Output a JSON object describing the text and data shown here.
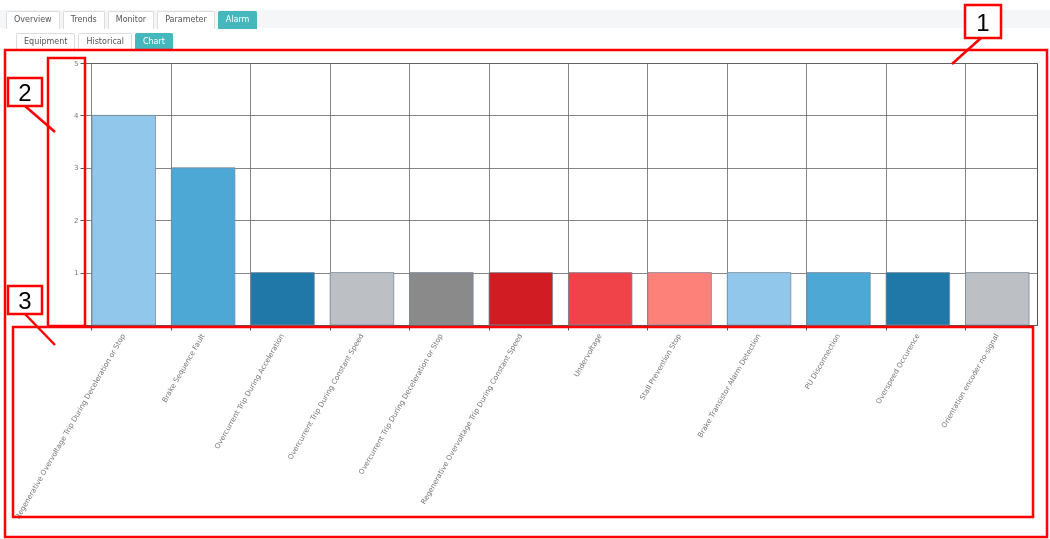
{
  "chart_data": {
    "type": "bar",
    "categories": [
      "Regenerative Overvoltage Trip During Deceleration or Stop",
      "Brake Sequence Fault",
      "Overcurrent Trip During Acceleration",
      "Overcurrent Trip During Constant Speed",
      "Overcurrent Trip During Deceleration or Stop",
      "Regenerative Overvoltage Trip During Constant Speed",
      "Undervoltage",
      "Stall Prevention Stop",
      "Brake Transistor Alarm Detection",
      "PU Disconnection",
      "Overspeed Occurence",
      "Orientation encoder no-signal"
    ],
    "values": [
      4,
      3,
      1,
      1,
      1,
      1,
      1,
      1,
      1,
      1,
      1,
      1
    ],
    "colors": [
      "#92c7ec",
      "#4ea8d6",
      "#1f78a8",
      "#bcc0c5",
      "#8a8a8a",
      "#d01c22",
      "#ef4249",
      "#fd8079",
      "#92c7ec",
      "#4ea8d6",
      "#1f78a8",
      "#bcc0c5"
    ],
    "ylim": [
      0,
      5
    ],
    "yticks": [
      1,
      2,
      3,
      4,
      5
    ],
    "grid": true,
    "legend": false,
    "annotations": [
      "Overview",
      "Trends",
      "Monitor",
      "Parameter",
      "Alarm",
      "Equipment",
      "Historical",
      "Chart",
      "1",
      "2",
      "3"
    ]
  }
}
